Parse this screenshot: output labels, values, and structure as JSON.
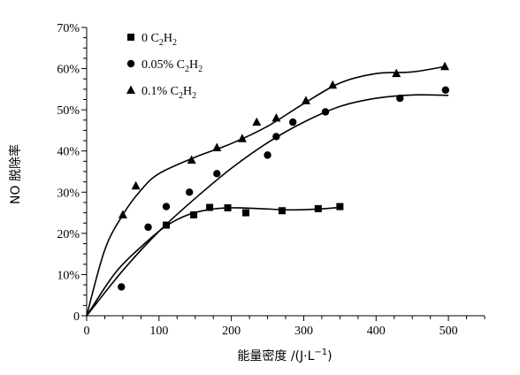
{
  "chart_data": {
    "type": "scatter",
    "title": "",
    "xlabel": "能量密度 /(J·L",
    "xlabel_exp": "−1",
    "xlabel_close": ")",
    "ylabel": "NO 脱除率",
    "xlim": [
      0,
      550
    ],
    "ylim": [
      0,
      70
    ],
    "xticks": [
      0,
      100,
      200,
      300,
      400,
      500
    ],
    "yticks": [
      0,
      10,
      20,
      30,
      40,
      50,
      60,
      70
    ],
    "ytick_labels": [
      "0",
      "10%",
      "20%",
      "30%",
      "40%",
      "50%",
      "60%",
      "70%"
    ],
    "grid": false,
    "legend_position": "top-left",
    "series": [
      {
        "name": "0 C2H2",
        "legend": {
          "pre": "0  C",
          "sub1": "2",
          "mid": "H",
          "sub2": "2"
        },
        "marker": "square",
        "x": [
          110,
          148,
          170,
          195,
          220,
          270,
          320,
          350
        ],
        "y": [
          22.0,
          24.5,
          26.3,
          26.2,
          25.0,
          25.5,
          26.0,
          26.5
        ],
        "fit_x": [
          0,
          40,
          80,
          110,
          140,
          170,
          200,
          240,
          280,
          320,
          350
        ],
        "fit_y": [
          0,
          10.5,
          17.5,
          21.8,
          24.5,
          25.8,
          26.2,
          26.0,
          25.7,
          25.9,
          26.3
        ]
      },
      {
        "name": "0.05% C2H2",
        "legend": {
          "pre": "0.05%  C",
          "sub1": "2",
          "mid": "H",
          "sub2": "2"
        },
        "marker": "circle",
        "x": [
          48,
          85,
          110,
          142,
          180,
          250,
          262,
          285,
          330,
          433,
          496
        ],
        "y": [
          7.0,
          21.5,
          26.5,
          30.0,
          34.5,
          39.0,
          43.5,
          47.0,
          49.5,
          52.8,
          54.8
        ],
        "fit_x": [
          0,
          50,
          100,
          150,
          200,
          250,
          300,
          350,
          400,
          450,
          500
        ],
        "fit_y": [
          0,
          11.0,
          20.5,
          28.5,
          35.8,
          42.0,
          47.0,
          50.8,
          52.8,
          53.6,
          53.5
        ]
      },
      {
        "name": "0.1% C2H2",
        "legend": {
          "pre": "0.1%  C",
          "sub1": "2",
          "mid": "H",
          "sub2": "2"
        },
        "marker": "triangle",
        "x": [
          50,
          68,
          145,
          180,
          215,
          235,
          262,
          303,
          340,
          428,
          495
        ],
        "y": [
          24.5,
          31.5,
          37.8,
          40.8,
          43.0,
          47.0,
          48.0,
          52.2,
          56.0,
          58.8,
          60.5
        ],
        "fit_x": [
          0,
          25,
          50,
          75,
          100,
          150,
          200,
          250,
          300,
          350,
          400,
          450,
          495
        ],
        "fit_y": [
          0,
          16.0,
          24.5,
          30.5,
          34.5,
          38.5,
          41.8,
          46.0,
          51.5,
          56.5,
          58.8,
          59.2,
          60.5
        ]
      }
    ]
  }
}
